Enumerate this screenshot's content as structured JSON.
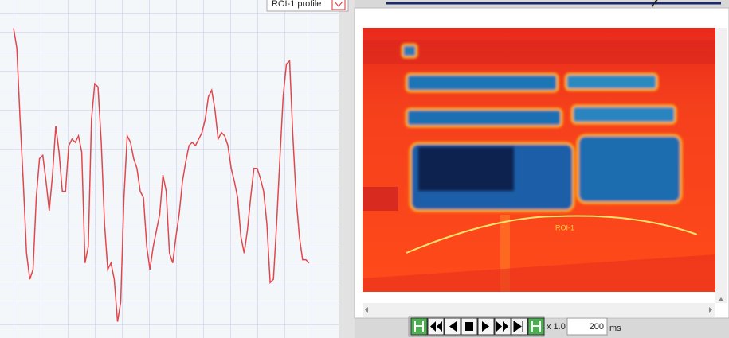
{
  "profile_panel": {
    "legend": "ROI-1 profile",
    "chart_data": {
      "type": "line",
      "color": "#e0474c",
      "ylim": [
        0,
        100
      ],
      "values": [
        95,
        89,
        67,
        48,
        26,
        18,
        21,
        43,
        55,
        56,
        48,
        39,
        50,
        65,
        57,
        45,
        45,
        59,
        61,
        60,
        62,
        57,
        23,
        28,
        67,
        78,
        77,
        60,
        35,
        21,
        23,
        18,
        5,
        11,
        43,
        62,
        60,
        55,
        52,
        45,
        43,
        28,
        21,
        28,
        33,
        38,
        50,
        45,
        26,
        23,
        31,
        38,
        48,
        54,
        59,
        60,
        59,
        61,
        63,
        67,
        74,
        76,
        70,
        61,
        63,
        62,
        59,
        52,
        48,
        43,
        31,
        26,
        33,
        43,
        52,
        52,
        49,
        45,
        35,
        17,
        18,
        35,
        55,
        74,
        84,
        85,
        62,
        43,
        31,
        24,
        24,
        23
      ]
    }
  },
  "image_panel": {
    "roi_label": "ROI-1"
  },
  "toolbar": {
    "speed": "x 1.0",
    "interval": "200",
    "unit": "ms"
  }
}
